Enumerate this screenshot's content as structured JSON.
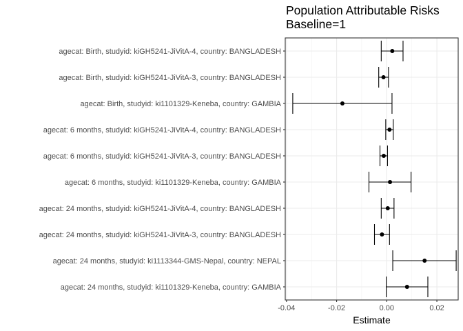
{
  "chart_data": {
    "type": "forest",
    "title": "Population Attributable Risks",
    "subtitle": "Baseline=1",
    "xlabel": "Estimate",
    "ylabel": "",
    "xlim": [
      -0.0405,
      0.0285
    ],
    "x_ticks": [
      -0.04,
      -0.02,
      0.0,
      0.02
    ],
    "x_tick_labels": [
      "-0.04",
      "-0.02",
      "0.00",
      "0.02"
    ],
    "grid": true,
    "rows": [
      {
        "label": "agecat: Birth, studyid: kiGH5241-JiVitA-4, country: BANGLADESH",
        "estimate": 0.0022,
        "lower": -0.0022,
        "upper": 0.0065
      },
      {
        "label": "agecat: Birth, studyid: kiGH5241-JiVitA-3, country: BANGLADESH",
        "estimate": -0.0013,
        "lower": -0.0032,
        "upper": 0.0007
      },
      {
        "label": "agecat: Birth, studyid: ki1101329-Keneba, country: GAMBIA",
        "estimate": -0.0177,
        "lower": -0.0375,
        "upper": 0.0021
      },
      {
        "label": "agecat: 6 months, studyid: kiGH5241-JiVitA-4, country: BANGLADESH",
        "estimate": 0.0011,
        "lower": -0.0004,
        "upper": 0.0026
      },
      {
        "label": "agecat: 6 months, studyid: kiGH5241-JiVitA-3, country: BANGLADESH",
        "estimate": -0.0012,
        "lower": -0.0027,
        "upper": 0.0003
      },
      {
        "label": "agecat: 6 months, studyid: ki1101329-Keneba, country: GAMBIA",
        "estimate": 0.0013,
        "lower": -0.0071,
        "upper": 0.0097
      },
      {
        "label": "agecat: 24 months, studyid: kiGH5241-JiVitA-4, country: BANGLADESH",
        "estimate": 0.0004,
        "lower": -0.0022,
        "upper": 0.0029
      },
      {
        "label": "agecat: 24 months, studyid: kiGH5241-JiVitA-3, country: BANGLADESH",
        "estimate": -0.0019,
        "lower": -0.0049,
        "upper": 0.0011
      },
      {
        "label": "agecat: 24 months, studyid: ki1113344-GMS-Nepal, country: NEPAL",
        "estimate": 0.0151,
        "lower": 0.0024,
        "upper": 0.0277
      },
      {
        "label": "agecat: 24 months, studyid: ki1101329-Keneba, country: GAMBIA",
        "estimate": 0.0081,
        "lower": -0.0002,
        "upper": 0.0164
      }
    ]
  }
}
